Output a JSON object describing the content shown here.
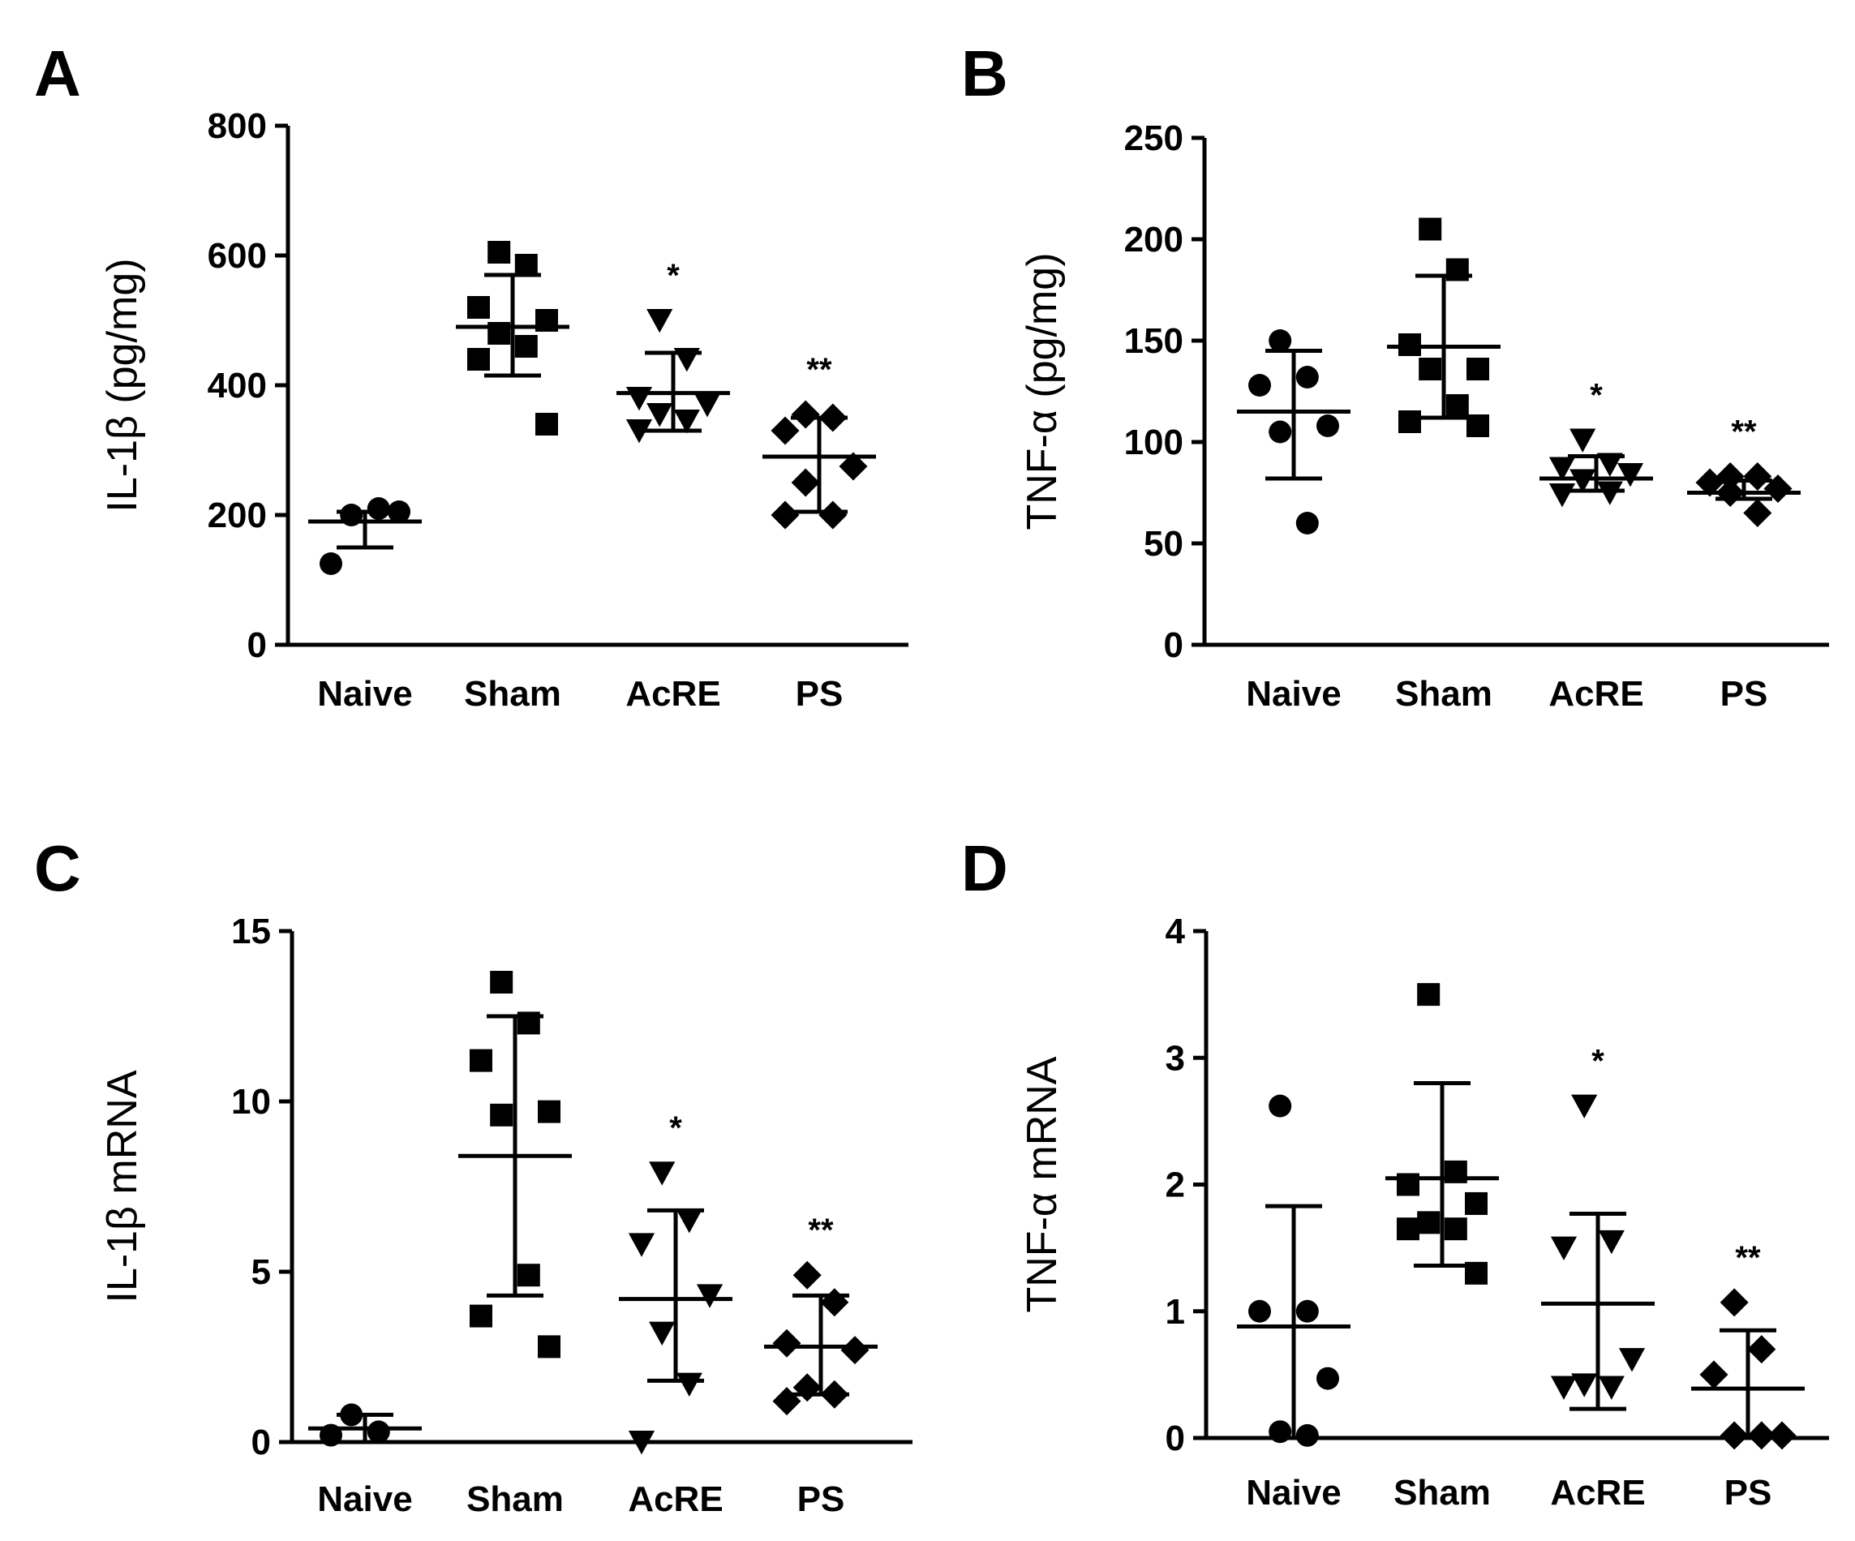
{
  "chart_data": [
    {
      "panel": "A",
      "type": "scatter",
      "ylabel": "IL-1β (pg/mg)",
      "ylim": [
        0,
        800
      ],
      "yticks": [
        0,
        200,
        400,
        600,
        800
      ],
      "categories": [
        "Naive",
        "Sham",
        "AcRE",
        "PS"
      ],
      "markers": [
        "circle",
        "square",
        "triangle-down",
        "diamond"
      ],
      "groups": [
        {
          "name": "Naive",
          "points": [
            200,
            210,
            125,
            205
          ],
          "mean": 190,
          "sd_low": 150,
          "sd_high": 205,
          "sig": ""
        },
        {
          "name": "Sham",
          "points": [
            605,
            585,
            520,
            500,
            480,
            460,
            440,
            340
          ],
          "mean": 490,
          "sd_low": 415,
          "sd_high": 570,
          "sig": ""
        },
        {
          "name": "AcRE",
          "points": [
            500,
            440,
            380,
            370,
            355,
            345,
            330
          ],
          "mean": 388,
          "sd_low": 330,
          "sd_high": 450,
          "sig": "*"
        },
        {
          "name": "PS",
          "points": [
            355,
            350,
            330,
            275,
            250,
            200,
            200
          ],
          "mean": 290,
          "sd_low": 205,
          "sd_high": 350,
          "sig": "**"
        }
      ]
    },
    {
      "panel": "B",
      "type": "scatter",
      "ylabel": "TNF-α (pg/mg)",
      "ylim": [
        0,
        250
      ],
      "yticks": [
        0,
        50,
        100,
        150,
        200,
        250
      ],
      "categories": [
        "Naive",
        "Sham",
        "AcRE",
        "PS"
      ],
      "markers": [
        "circle",
        "square",
        "triangle-down",
        "diamond"
      ],
      "groups": [
        {
          "name": "Naive",
          "points": [
            150,
            132,
            128,
            108,
            105,
            60
          ],
          "mean": 115,
          "sd_low": 82,
          "sd_high": 145,
          "sig": ""
        },
        {
          "name": "Sham",
          "points": [
            205,
            185,
            148,
            136,
            136,
            118,
            110,
            108
          ],
          "mean": 147,
          "sd_low": 112,
          "sd_high": 182,
          "sig": ""
        },
        {
          "name": "AcRE",
          "points": [
            101,
            89,
            87,
            84,
            81,
            75,
            74
          ],
          "mean": 82,
          "sd_low": 76,
          "sd_high": 93,
          "sig": "*"
        },
        {
          "name": "PS",
          "points": [
            83,
            83,
            80,
            77,
            75,
            65
          ],
          "mean": 75,
          "sd_low": 72,
          "sd_high": 81,
          "sig": "**"
        }
      ]
    },
    {
      "panel": "C",
      "type": "scatter",
      "ylabel": "IL-1β mRNA",
      "ylim": [
        0,
        15
      ],
      "yticks": [
        0,
        5,
        10,
        15
      ],
      "categories": [
        "Naive",
        "Sham",
        "AcRE",
        "PS"
      ],
      "markers": [
        "circle",
        "square",
        "triangle-down",
        "diamond"
      ],
      "groups": [
        {
          "name": "Naive",
          "points": [
            0.8,
            0.3,
            0.2
          ],
          "mean": 0.4,
          "sd_low": 0.0,
          "sd_high": 0.8,
          "sig": ""
        },
        {
          "name": "Sham",
          "points": [
            13.5,
            12.3,
            11.2,
            9.7,
            9.6,
            4.9,
            3.7,
            2.8
          ],
          "mean": 8.4,
          "sd_low": 4.3,
          "sd_high": 12.5,
          "sig": ""
        },
        {
          "name": "AcRE",
          "points": [
            7.9,
            6.5,
            5.8,
            4.3,
            3.2,
            1.7,
            0.0
          ],
          "mean": 4.2,
          "sd_low": 1.8,
          "sd_high": 6.8,
          "sig": "*"
        },
        {
          "name": "PS",
          "points": [
            4.9,
            4.1,
            2.9,
            2.7,
            1.6,
            1.4,
            1.2
          ],
          "mean": 2.8,
          "sd_low": 1.4,
          "sd_high": 4.3,
          "sig": "**"
        }
      ]
    },
    {
      "panel": "D",
      "type": "scatter",
      "ylabel": "TNF-α mRNA",
      "ylim": [
        0,
        4
      ],
      "yticks": [
        0,
        1,
        2,
        3,
        4
      ],
      "categories": [
        "Naive",
        "Sham",
        "AcRE",
        "PS"
      ],
      "markers": [
        "circle",
        "square",
        "triangle-down",
        "diamond"
      ],
      "groups": [
        {
          "name": "Naive",
          "points": [
            2.62,
            1.0,
            1.0,
            0.47,
            0.05,
            0.02
          ],
          "mean": 0.88,
          "sd_low": 0.0,
          "sd_high": 1.83,
          "sig": ""
        },
        {
          "name": "Sham",
          "points": [
            3.5,
            2.1,
            2.0,
            1.85,
            1.7,
            1.65,
            1.65,
            1.3
          ],
          "mean": 2.05,
          "sd_low": 1.36,
          "sd_high": 2.8,
          "sig": ""
        },
        {
          "name": "AcRE",
          "points": [
            2.62,
            1.55,
            1.5,
            0.62,
            0.42,
            0.4,
            0.4
          ],
          "mean": 1.06,
          "sd_low": 0.23,
          "sd_high": 1.77,
          "sig": "*"
        },
        {
          "name": "PS",
          "points": [
            1.07,
            0.7,
            0.5,
            0.02,
            0.02,
            0.02
          ],
          "mean": 0.39,
          "sd_low": 0.0,
          "sd_high": 0.85,
          "sig": "**"
        }
      ]
    }
  ]
}
